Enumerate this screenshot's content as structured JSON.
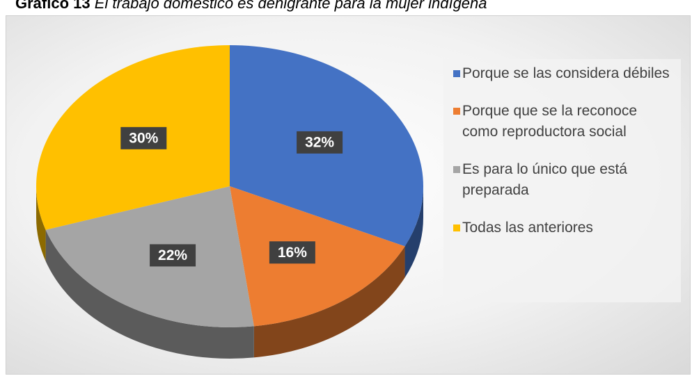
{
  "chart_data": {
    "type": "pie",
    "title": "Gráfico 13",
    "subtitle": "El trabajo doméstico es denigrante para la mujer indígena",
    "categories": [
      "Porque se las considera débiles",
      "Porque que se la reconoce como reproductora social",
      "Es para lo único que está preparada",
      "Todas las anteriores"
    ],
    "values": [
      32,
      16,
      22,
      30
    ],
    "value_labels": [
      "32%",
      "16%",
      "22%",
      "30%"
    ],
    "colors": [
      "#4472c4",
      "#ed7d31",
      "#a5a5a5",
      "#ffc000"
    ],
    "legend": "right"
  }
}
